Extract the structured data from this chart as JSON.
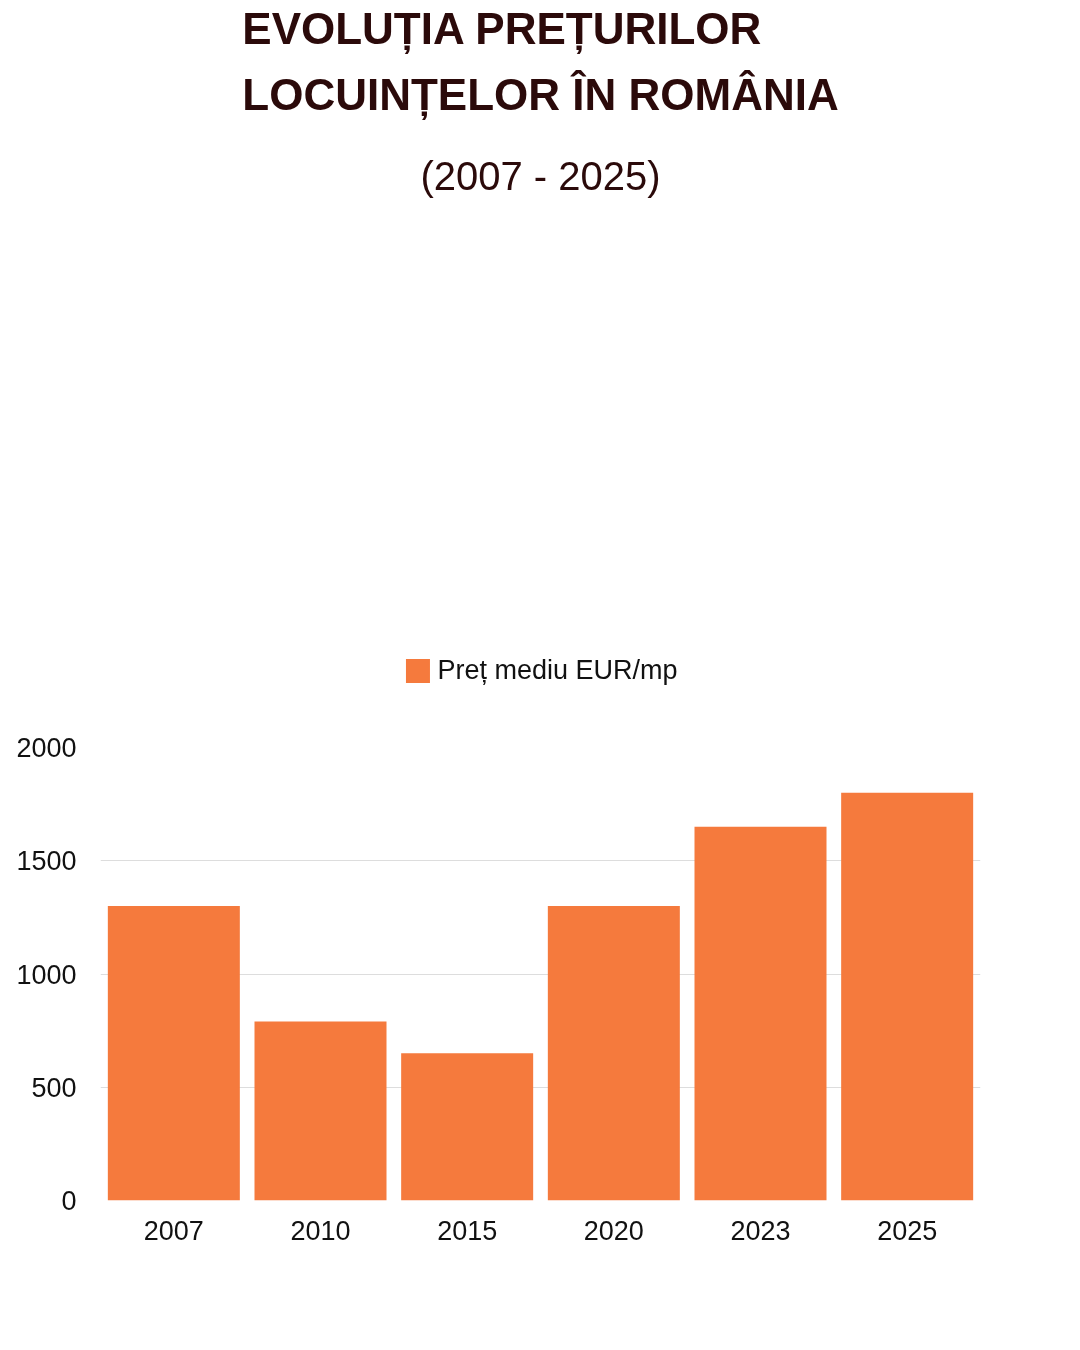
{
  "chart_data": {
    "type": "bar",
    "title": "EVOLUȚIA PREȚURILOR LOCUINȚELOR ÎN ROMÂNIA",
    "subtitle": "(2007 - 2025)",
    "categories": [
      "2007",
      "2010",
      "2015",
      "2020",
      "2023",
      "2025"
    ],
    "series": [
      {
        "name": "Preț mediu EUR/mp",
        "color": "#f57a3d",
        "values": [
          1300,
          790,
          650,
          1300,
          1650,
          1800
        ]
      }
    ],
    "ylim": [
      0,
      2000
    ],
    "yticks": [
      0,
      500,
      1000,
      1500,
      2000
    ],
    "grid": "y",
    "legend": "top"
  }
}
